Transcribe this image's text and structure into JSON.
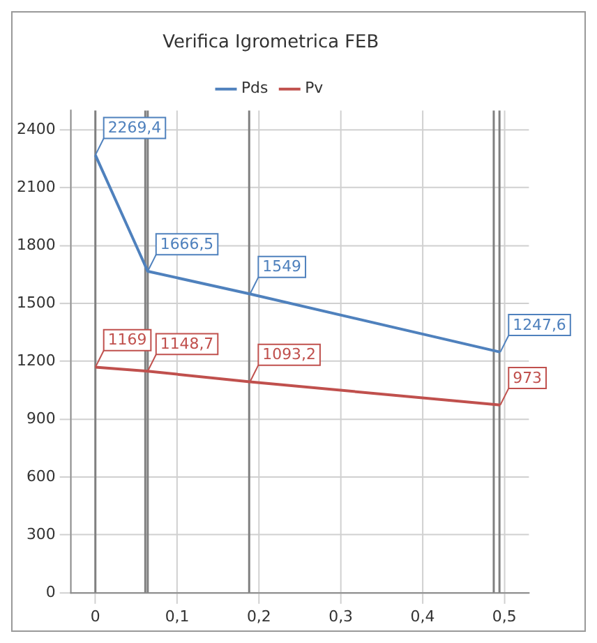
{
  "chart_data": {
    "type": "line",
    "title": "Verifica Igrometrica FEB",
    "series": [
      {
        "name": "Pds",
        "color": "#4f81bd",
        "x": [
          0,
          0.064,
          0.189,
          0.495
        ],
        "values": [
          2269.4,
          1666.5,
          1549,
          1247.6
        ],
        "value_labels": [
          "2269,4",
          "1666,5",
          "1549",
          "1247,6"
        ]
      },
      {
        "name": "Pv",
        "color": "#c0504d",
        "x": [
          0,
          0.064,
          0.189,
          0.495
        ],
        "values": [
          1169,
          1148.7,
          1093.2,
          973
        ],
        "value_labels": [
          "1169",
          "1148,7",
          "1093,2",
          "973"
        ]
      }
    ],
    "xlim": [
      -0.03,
      0.53
    ],
    "xticks": [
      0,
      {
        "value": 0.1,
        "label": "0,1"
      },
      {
        "value": 0.2,
        "label": "0,2"
      },
      {
        "value": 0.3,
        "label": "0,3"
      },
      {
        "value": 0.4,
        "label": "0,4"
      },
      {
        "value": 0.5,
        "label": "0,5"
      }
    ],
    "ylim": [
      0,
      2500
    ],
    "yticks": [
      0,
      300,
      600,
      900,
      1200,
      1500,
      1800,
      2100,
      2400
    ],
    "ref_lines": [
      {
        "axis": "x",
        "value": 0,
        "color": "#808080"
      },
      {
        "axis": "x",
        "value": 0.061,
        "color": "#808080"
      },
      {
        "axis": "x",
        "value": 0.064,
        "color": "#808080"
      },
      {
        "axis": "x",
        "value": 0.188,
        "color": "#808080"
      },
      {
        "axis": "x",
        "value": 0.487,
        "color": "#808080"
      },
      {
        "axis": "x",
        "value": 0.494,
        "color": "#808080"
      }
    ],
    "grid": true,
    "legend": "top",
    "marker": "none",
    "line_style": "solid"
  }
}
